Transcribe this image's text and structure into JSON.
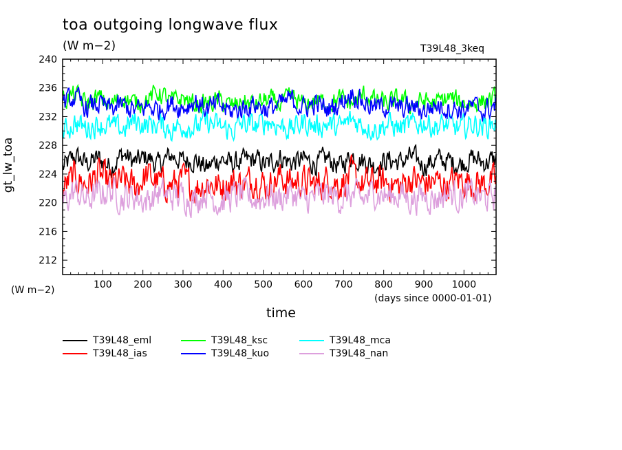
{
  "header": {
    "title": "toa outgoing longwave flux",
    "unit": "(W m−2)",
    "run_label": "T39L48_3keq"
  },
  "axes": {
    "y_name": "gt_lw_toa",
    "y_unit": "(W m−2)",
    "x_label": "time",
    "x_unit": "(days since 0000-01-01)"
  },
  "chart_data": {
    "type": "line",
    "x": [
      0,
      30,
      60,
      90,
      120,
      150,
      180,
      210,
      240,
      270,
      300,
      330,
      360,
      390,
      420,
      450,
      480,
      510,
      540,
      570,
      600,
      630,
      660,
      690,
      720,
      750,
      780,
      810,
      840,
      870,
      900,
      930,
      960,
      990,
      1020,
      1050,
      1080
    ],
    "xlim": [
      0,
      1080
    ],
    "ylim": [
      210,
      240
    ],
    "x_ticks": [
      100,
      200,
      300,
      400,
      500,
      600,
      700,
      800,
      900,
      1000
    ],
    "y_ticks": [
      212,
      216,
      220,
      224,
      228,
      232,
      236,
      240
    ],
    "grid": false,
    "legend_position": "bottom",
    "series": [
      {
        "name": "T39L48_eml",
        "color": "#000000",
        "values": [
          224.8,
          226.5,
          225.5,
          226.2,
          225.0,
          226.8,
          225.6,
          226.4,
          225.2,
          226.6,
          225.8,
          226.0,
          224.8,
          226.2,
          225.4,
          225.8,
          226.0,
          225.2,
          226.4,
          225.6,
          226.0,
          225.4,
          226.2,
          225.0,
          226.6,
          225.8,
          225.2,
          226.0,
          225.6,
          226.4,
          225.2,
          226.0,
          225.8,
          225.4,
          226.2,
          225.6,
          226.0
        ]
      },
      {
        "name": "T39L48_ias",
        "color": "#ff0000",
        "values": [
          222.0,
          223.6,
          222.4,
          224.0,
          222.6,
          223.0,
          222.2,
          223.8,
          222.8,
          222.4,
          223.2,
          222.0,
          222.8,
          222.2,
          223.0,
          222.6,
          223.4,
          222.2,
          223.6,
          222.8,
          223.0,
          222.4,
          223.2,
          222.6,
          223.8,
          222.4,
          223.0,
          222.8,
          222.2,
          223.4,
          222.6,
          223.0,
          222.4,
          223.2,
          222.8,
          222.6,
          223.0
        ]
      },
      {
        "name": "T39L48_nan",
        "color": "#dda0dd",
        "values": [
          220.0,
          221.6,
          220.4,
          221.2,
          221.8,
          220.6,
          221.0,
          220.2,
          221.4,
          220.8,
          221.0,
          220.4,
          221.6,
          220.0,
          220.8,
          221.2,
          220.4,
          221.0,
          220.6,
          221.4,
          220.2,
          220.8,
          221.2,
          220.6,
          221.0,
          220.4,
          221.6,
          220.8,
          221.2,
          220.4,
          221.0,
          220.6,
          221.4,
          220.8,
          221.2,
          220.6,
          221.0
        ]
      },
      {
        "name": "T39L48_mca",
        "color": "#00ffff",
        "values": [
          229.6,
          231.2,
          230.4,
          231.0,
          230.6,
          230.2,
          231.4,
          230.8,
          231.0,
          230.2,
          230.8,
          230.4,
          231.2,
          230.6,
          230.0,
          231.0,
          230.6,
          231.4,
          230.8,
          230.2,
          231.2,
          230.6,
          231.0,
          230.4,
          231.6,
          230.8,
          230.2,
          231.0,
          230.4,
          230.8,
          231.2,
          230.6,
          230.8,
          230.2,
          231.0,
          230.6,
          231.2
        ]
      },
      {
        "name": "T39L48_ksc",
        "color": "#00ff00",
        "values": [
          234.2,
          235.0,
          233.8,
          234.6,
          233.6,
          234.8,
          233.8,
          234.4,
          235.4,
          234.0,
          234.6,
          233.6,
          233.8,
          234.2,
          233.4,
          234.0,
          233.6,
          234.4,
          233.8,
          234.6,
          233.6,
          234.2,
          233.8,
          234.4,
          233.8,
          235.0,
          234.2,
          233.8,
          234.4,
          233.6,
          234.2,
          233.8,
          234.6,
          234.0,
          233.8,
          234.2,
          234.4
        ]
      },
      {
        "name": "T39L48_kuo",
        "color": "#0000ff",
        "values": [
          233.8,
          234.6,
          233.2,
          233.8,
          233.0,
          233.6,
          232.8,
          233.4,
          233.0,
          233.8,
          233.2,
          234.2,
          233.0,
          233.6,
          232.6,
          233.2,
          233.8,
          233.0,
          233.6,
          234.4,
          233.2,
          233.8,
          233.0,
          233.8,
          235.4,
          234.0,
          233.2,
          233.6,
          233.0,
          233.4,
          232.8,
          233.6,
          233.2,
          233.0,
          233.4,
          232.8,
          233.6
        ]
      }
    ]
  }
}
